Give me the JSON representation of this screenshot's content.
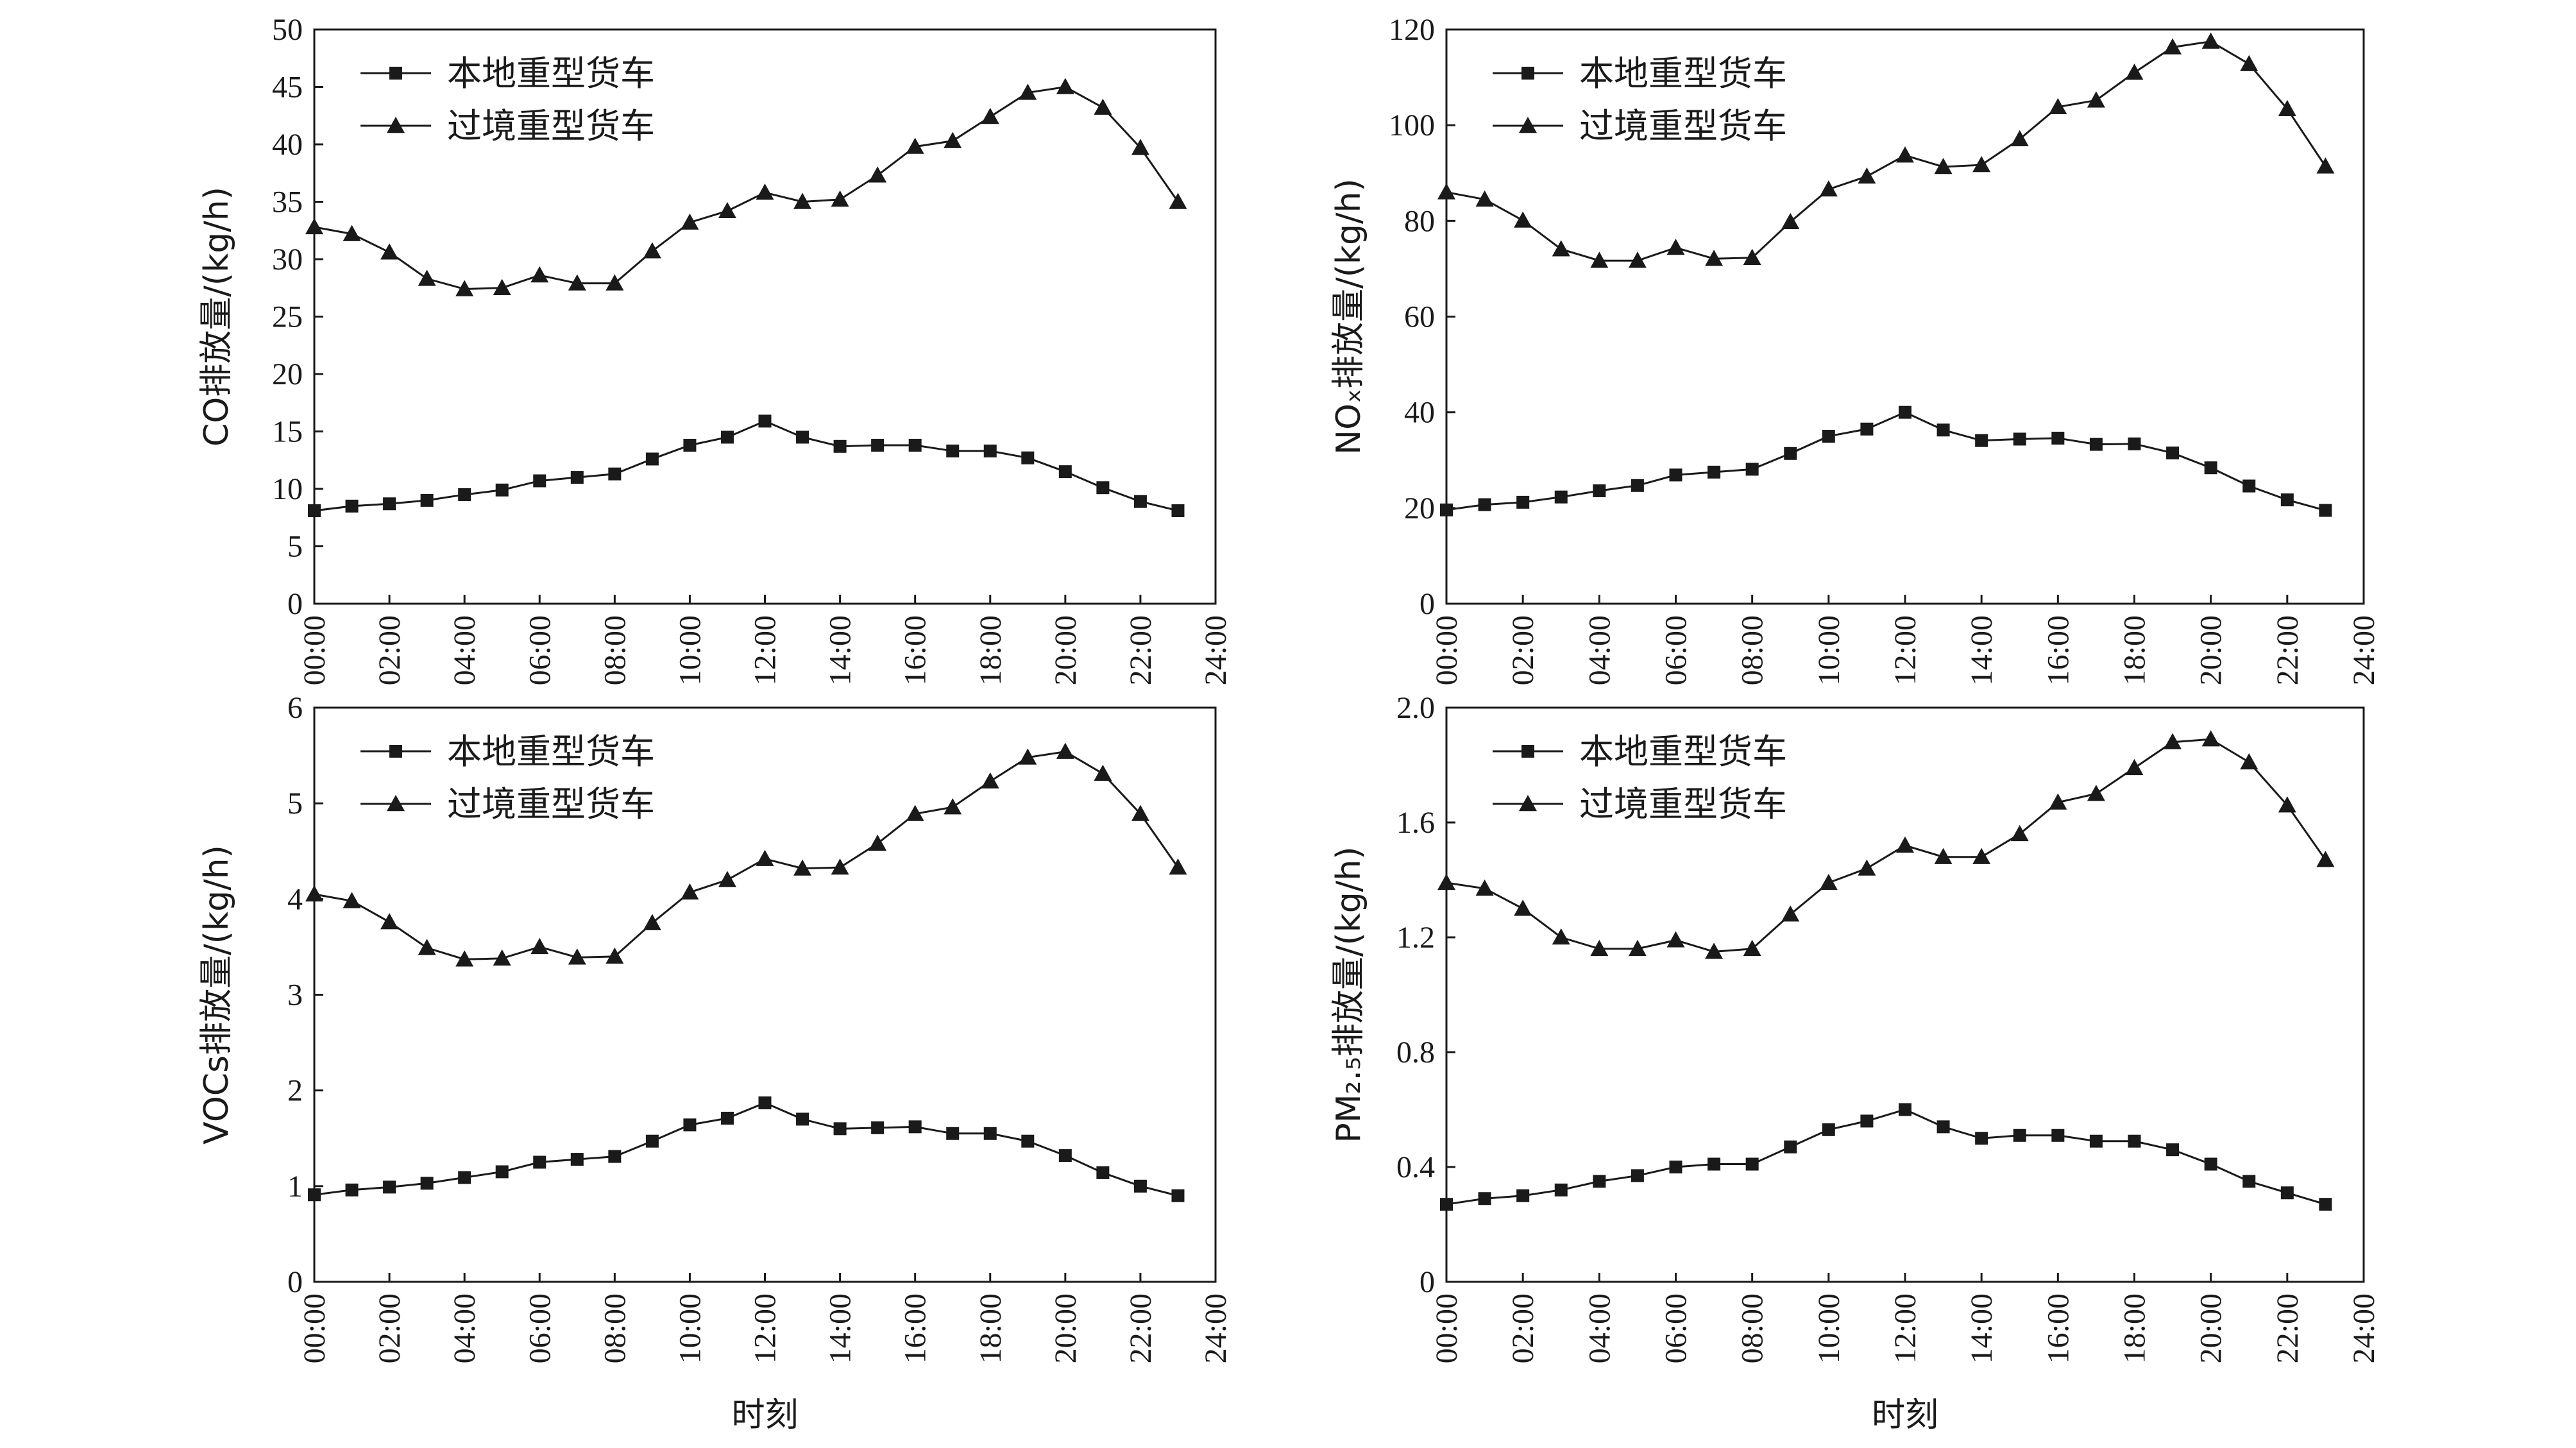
{
  "chart_data": [
    {
      "type": "line",
      "ylabel": "CO排放量/(kg/h)",
      "xlabel": "",
      "ylim": [
        0,
        50
      ],
      "yticks": [
        "0",
        "5",
        "10",
        "15",
        "20",
        "25",
        "30",
        "35",
        "40",
        "45",
        "50"
      ],
      "xlim": [
        0,
        24
      ],
      "xticks": [
        "00:00",
        "02:00",
        "04:00",
        "06:00",
        "08:00",
        "10:00",
        "12:00",
        "14:00",
        "16:00",
        "18:00",
        "20:00",
        "22:00",
        "24:00"
      ],
      "legend": "top-left",
      "x": [
        0,
        1,
        2,
        3,
        4,
        5,
        6,
        7,
        8,
        9,
        10,
        11,
        12,
        13,
        14,
        15,
        16,
        17,
        18,
        19,
        20,
        21,
        22,
        23
      ],
      "series": [
        {
          "name": "本地重型货车",
          "marker": "square",
          "values": [
            8.1,
            8.5,
            8.7,
            9.0,
            9.5,
            9.9,
            10.7,
            11.0,
            11.3,
            12.6,
            13.8,
            14.5,
            15.9,
            14.5,
            13.7,
            13.8,
            13.8,
            13.3,
            13.3,
            12.7,
            11.5,
            10.1,
            8.9,
            8.1
          ]
        },
        {
          "name": "过境重型货车",
          "marker": "triangle",
          "values": [
            32.8,
            32.2,
            30.6,
            28.3,
            27.4,
            27.5,
            28.6,
            27.9,
            27.9,
            30.7,
            33.2,
            34.2,
            35.8,
            35.0,
            35.2,
            37.3,
            39.8,
            40.3,
            42.4,
            44.5,
            45.0,
            43.2,
            39.7,
            35.0
          ]
        }
      ]
    },
    {
      "type": "line",
      "ylabel": "NOₓ排放量/(kg/h)",
      "xlabel": "",
      "ylim": [
        0,
        120
      ],
      "yticks": [
        "0",
        "20",
        "40",
        "60",
        "80",
        "100",
        "120"
      ],
      "xlim": [
        0,
        24
      ],
      "xticks": [
        "00:00",
        "02:00",
        "04:00",
        "06:00",
        "08:00",
        "10:00",
        "12:00",
        "14:00",
        "16:00",
        "18:00",
        "20:00",
        "22:00",
        "24:00"
      ],
      "legend": "top-left",
      "x": [
        0,
        1,
        2,
        3,
        4,
        5,
        6,
        7,
        8,
        9,
        10,
        11,
        12,
        13,
        14,
        15,
        16,
        17,
        18,
        19,
        20,
        21,
        22,
        23
      ],
      "series": [
        {
          "name": "本地重型货车",
          "marker": "square",
          "values": [
            19.6,
            20.7,
            21.2,
            22.3,
            23.6,
            24.7,
            26.9,
            27.5,
            28.1,
            31.4,
            35.0,
            36.5,
            40.0,
            36.3,
            34.1,
            34.4,
            34.6,
            33.3,
            33.4,
            31.5,
            28.4,
            24.6,
            21.7,
            19.5
          ]
        },
        {
          "name": "过境重型货车",
          "marker": "triangle",
          "values": [
            86.0,
            84.5,
            80.1,
            74.1,
            71.7,
            71.7,
            74.4,
            72.1,
            72.3,
            79.8,
            86.6,
            89.3,
            93.7,
            91.3,
            91.7,
            97.1,
            103.8,
            105.2,
            111.0,
            116.3,
            117.5,
            112.8,
            103.4,
            91.4
          ]
        }
      ]
    },
    {
      "type": "line",
      "ylabel": "VOCs排放量/(kg/h)",
      "xlabel": "时刻",
      "ylim": [
        0,
        6
      ],
      "yticks": [
        "0",
        "1",
        "2",
        "3",
        "4",
        "5",
        "6"
      ],
      "xlim": [
        0,
        24
      ],
      "xticks": [
        "00:00",
        "02:00",
        "04:00",
        "06:00",
        "08:00",
        "10:00",
        "12:00",
        "14:00",
        "16:00",
        "18:00",
        "20:00",
        "22:00",
        "24:00"
      ],
      "legend": "top-left",
      "x": [
        0,
        1,
        2,
        3,
        4,
        5,
        6,
        7,
        8,
        9,
        10,
        11,
        12,
        13,
        14,
        15,
        16,
        17,
        18,
        19,
        20,
        21,
        22,
        23
      ],
      "series": [
        {
          "name": "本地重型货车",
          "marker": "square",
          "values": [
            0.91,
            0.96,
            0.99,
            1.03,
            1.09,
            1.15,
            1.25,
            1.28,
            1.31,
            1.47,
            1.64,
            1.71,
            1.87,
            1.7,
            1.6,
            1.61,
            1.62,
            1.55,
            1.55,
            1.47,
            1.32,
            1.14,
            1.0,
            0.9
          ]
        },
        {
          "name": "过境重型货车",
          "marker": "triangle",
          "values": [
            4.05,
            3.98,
            3.76,
            3.49,
            3.37,
            3.38,
            3.5,
            3.39,
            3.4,
            3.75,
            4.07,
            4.2,
            4.42,
            4.32,
            4.33,
            4.58,
            4.89,
            4.96,
            5.23,
            5.48,
            5.54,
            5.31,
            4.89,
            4.33
          ]
        }
      ]
    },
    {
      "type": "line",
      "ylabel": "PM₂.₅排放量/(kg/h)",
      "xlabel": "时刻",
      "ylim": [
        0,
        2.0
      ],
      "yticks": [
        "0",
        "0.4",
        "0.8",
        "1.2",
        "1.6",
        "2.0"
      ],
      "xlim": [
        0,
        24
      ],
      "xticks": [
        "00:00",
        "02:00",
        "04:00",
        "06:00",
        "08:00",
        "10:00",
        "12:00",
        "14:00",
        "16:00",
        "18:00",
        "20:00",
        "22:00",
        "24:00"
      ],
      "legend": "top-left",
      "x": [
        0,
        1,
        2,
        3,
        4,
        5,
        6,
        7,
        8,
        9,
        10,
        11,
        12,
        13,
        14,
        15,
        16,
        17,
        18,
        19,
        20,
        21,
        22,
        23
      ],
      "series": [
        {
          "name": "本地重型货车",
          "marker": "square",
          "values": [
            0.27,
            0.29,
            0.3,
            0.32,
            0.35,
            0.37,
            0.4,
            0.41,
            0.41,
            0.47,
            0.53,
            0.56,
            0.6,
            0.54,
            0.5,
            0.51,
            0.51,
            0.49,
            0.49,
            0.46,
            0.41,
            0.35,
            0.31,
            0.27
          ]
        },
        {
          "name": "过境重型货车",
          "marker": "triangle",
          "values": [
            1.39,
            1.37,
            1.3,
            1.2,
            1.16,
            1.16,
            1.19,
            1.15,
            1.16,
            1.28,
            1.39,
            1.44,
            1.52,
            1.48,
            1.48,
            1.56,
            1.67,
            1.7,
            1.79,
            1.88,
            1.89,
            1.81,
            1.66,
            1.47
          ]
        }
      ]
    }
  ],
  "colors": {
    "line": "#1a1a1a",
    "axis": "#1a1a1a",
    "background": "#ffffff"
  }
}
